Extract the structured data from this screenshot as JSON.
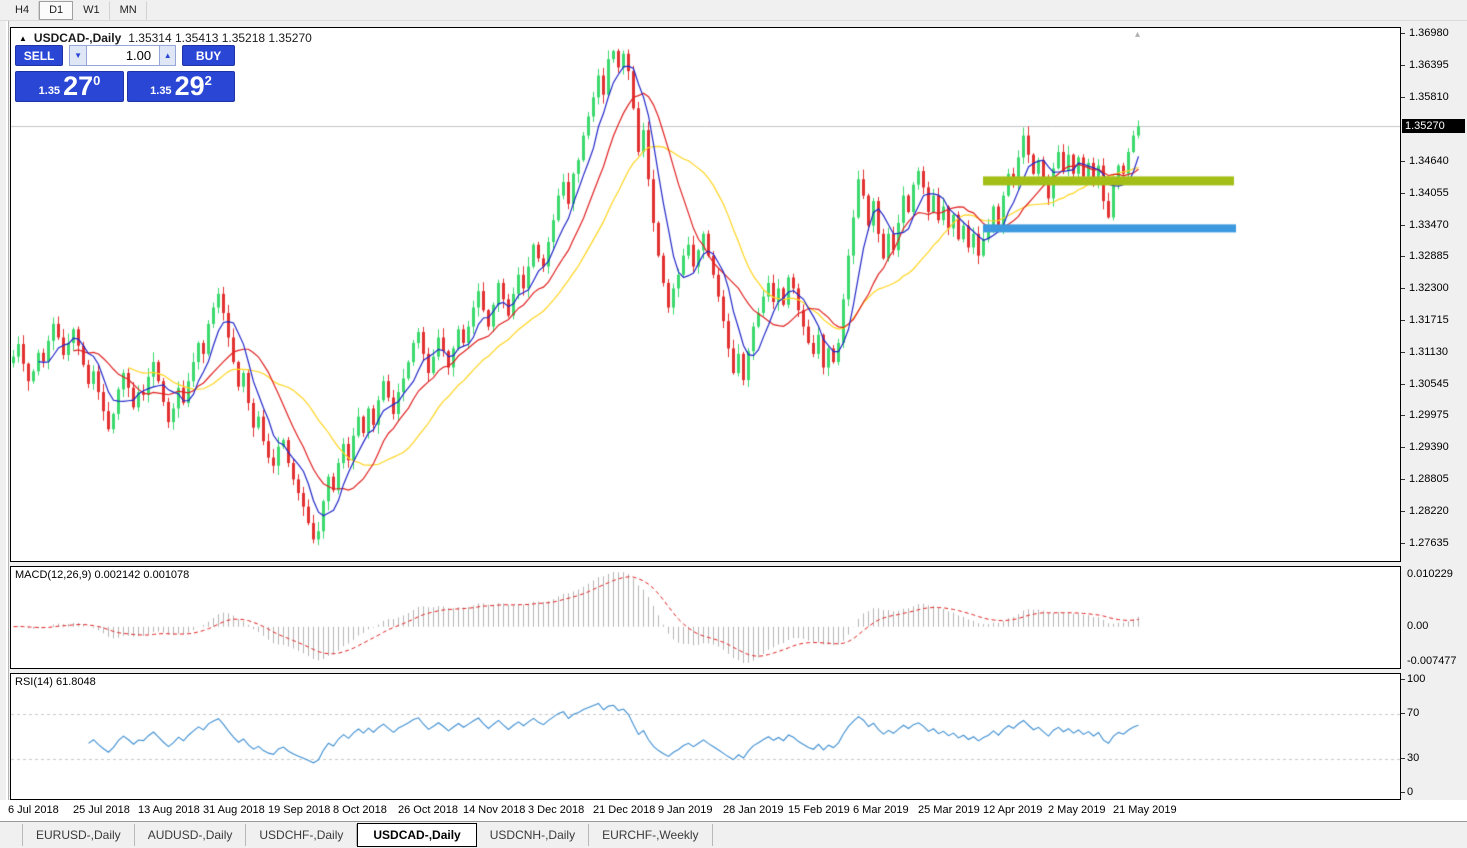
{
  "toolbar": {
    "timeframes": [
      {
        "label": "H4",
        "active": false
      },
      {
        "label": "D1",
        "active": true
      },
      {
        "label": "W1",
        "active": false
      },
      {
        "label": "MN",
        "active": false
      }
    ]
  },
  "chart": {
    "symbol": "USDCAD-,Daily",
    "quote_line": "1.35314 1.35413 1.35218 1.35270",
    "current_price": "1.35270",
    "trade_panel": {
      "sell_label": "SELL",
      "buy_label": "BUY",
      "volume": "1.00",
      "sell_small": "1.35",
      "sell_big": "27",
      "sell_sup": "0",
      "buy_small": "1.35",
      "buy_big": "29",
      "buy_sup": "2"
    }
  },
  "macd_panel": {
    "label": "MACD(12,26,9) 0.002142 0.001078",
    "axis_top": "0.010229",
    "axis_zero": "0.00",
    "axis_bottom": "-0.007477"
  },
  "rsi_panel": {
    "label": "RSI(14) 61.8048",
    "axis": [
      100,
      70,
      30,
      0
    ]
  },
  "date_axis": [
    "6 Jul 2018",
    "25 Jul 2018",
    "13 Aug 2018",
    "31 Aug 2018",
    "19 Sep 2018",
    "8 Oct 2018",
    "26 Oct 2018",
    "14 Nov 2018",
    "3 Dec 2018",
    "21 Dec 2018",
    "9 Jan 2019",
    "28 Jan 2019",
    "15 Feb 2019",
    "6 Mar 2019",
    "25 Mar 2019",
    "12 Apr 2019",
    "2 May 2019",
    "21 May 2019"
  ],
  "tabs": [
    {
      "label": "EURUSD-,Daily",
      "active": false
    },
    {
      "label": "AUDUSD-,Daily",
      "active": false
    },
    {
      "label": "USDCHF-,Daily",
      "active": false
    },
    {
      "label": "USDCAD-,Daily",
      "active": true
    },
    {
      "label": "USDCNH-,Daily",
      "active": false
    },
    {
      "label": "EURCHF-,Weekly",
      "active": false
    }
  ],
  "chart_data": {
    "type": "candlestick",
    "symbol": "USDCAD",
    "timeframe": "Daily",
    "title": "USDCAD-,Daily",
    "ohlc_display": {
      "open": 1.35314,
      "high": 1.35413,
      "low": 1.35218,
      "close": 1.3527
    },
    "current_price": 1.3527,
    "ylim": [
      1.2735,
      1.3707
    ],
    "price_axis_values": [
      1.3698,
      1.36395,
      1.3581,
      1.3464,
      1.34055,
      1.3347,
      1.32885,
      1.323,
      1.31715,
      1.3113,
      1.30545,
      1.29975,
      1.2939,
      1.28805,
      1.2822,
      1.27635
    ],
    "x_axis_dates": [
      "6 Jul 2018",
      "25 Jul 2018",
      "13 Aug 2018",
      "31 Aug 2018",
      "19 Sep 2018",
      "8 Oct 2018",
      "26 Oct 2018",
      "14 Nov 2018",
      "3 Dec 2018",
      "21 Dec 2018",
      "9 Jan 2019",
      "28 Jan 2019",
      "15 Feb 2019",
      "6 Mar 2019",
      "25 Mar 2019",
      "12 Apr 2019",
      "2 May 2019",
      "21 May 2019"
    ],
    "bars_per_label": 13,
    "closes": [
      1.3105,
      1.3128,
      1.3092,
      1.306,
      1.3078,
      1.3112,
      1.3096,
      1.3134,
      1.3165,
      1.314,
      1.3108,
      1.313,
      1.3155,
      1.3125,
      1.309,
      1.3055,
      1.3078,
      1.304,
      1.3005,
      1.2972,
      1.3,
      1.3045,
      1.3075,
      1.3048,
      1.3012,
      1.304,
      1.3035,
      1.3068,
      1.3095,
      1.306,
      1.3022,
      1.2985,
      1.301,
      1.3048,
      1.302,
      1.306,
      1.3095,
      1.313,
      1.311,
      1.3165,
      1.3195,
      1.322,
      1.3185,
      1.314,
      1.3095,
      1.305,
      1.3075,
      1.302,
      1.2975,
      1.2995,
      1.295,
      1.292,
      1.2905,
      1.294,
      1.2952,
      1.291,
      1.288,
      1.2855,
      1.283,
      1.28,
      1.277,
      1.2785,
      1.284,
      1.2885,
      1.286,
      1.291,
      1.2945,
      1.2915,
      1.296,
      1.2995,
      1.2965,
      1.301,
      1.298,
      1.3025,
      1.306,
      1.303,
      1.3,
      1.304,
      1.3065,
      1.3095,
      1.313,
      1.315,
      1.311,
      1.3075,
      1.3105,
      1.314,
      1.3115,
      1.3085,
      1.312,
      1.3155,
      1.313,
      1.316,
      1.3195,
      1.3225,
      1.319,
      1.316,
      1.32,
      1.324,
      1.321,
      1.318,
      1.322,
      1.3255,
      1.323,
      1.327,
      1.331,
      1.3285,
      1.327,
      1.3315,
      1.3355,
      1.34,
      1.3425,
      1.3385,
      1.344,
      1.3465,
      1.351,
      1.3545,
      1.358,
      1.362,
      1.3585,
      1.365,
      1.3665,
      1.3635,
      1.366,
      1.3628,
      1.356,
      1.348,
      1.352,
      1.343,
      1.335,
      1.329,
      1.324,
      1.3195,
      1.323,
      1.3255,
      1.329,
      1.331,
      1.327,
      1.33,
      1.333,
      1.329,
      1.3255,
      1.3215,
      1.317,
      1.312,
      1.3075,
      1.311,
      1.3062,
      1.3115,
      1.316,
      1.3185,
      1.3215,
      1.324,
      1.3205,
      1.323,
      1.32,
      1.325,
      1.323,
      1.319,
      1.316,
      1.313,
      1.311,
      1.3145,
      1.3085,
      1.312,
      1.3095,
      1.313,
      1.321,
      1.329,
      1.336,
      1.343,
      1.34,
      1.3345,
      1.339,
      1.333,
      1.3285,
      1.333,
      1.33,
      1.335,
      1.34,
      1.337,
      1.342,
      1.3445,
      1.3415,
      1.337,
      1.34,
      1.3355,
      1.338,
      1.334,
      1.3365,
      1.332,
      1.3345,
      1.3305,
      1.333,
      1.329,
      1.332,
      1.334,
      1.338,
      1.3345,
      1.34,
      1.344,
      1.342,
      1.347,
      1.351,
      1.3475,
      1.344,
      1.3465,
      1.343,
      1.3395,
      1.345,
      1.348,
      1.3445,
      1.3475,
      1.344,
      1.347,
      1.3435,
      1.346,
      1.3425,
      1.3455,
      1.339,
      1.336,
      1.342,
      1.3455,
      1.344,
      1.348,
      1.351,
      1.3527
    ],
    "moving_averages": [
      {
        "period": 24,
        "color": "#ffd41f"
      },
      {
        "period": 13,
        "color": "#e02222"
      },
      {
        "period": 6,
        "color": "#2228c8"
      }
    ],
    "levels": [
      {
        "price": 1.3427,
        "color": "#a3bf17",
        "thickness": 9,
        "from_bar": 194,
        "to_bar": 244.2
      },
      {
        "price": 1.334,
        "color": "#3c98df",
        "thickness": 8,
        "from_bar": 194,
        "to_bar": 244.6
      }
    ],
    "macd": {
      "fast": 12,
      "slow": 26,
      "signal": 9,
      "value": 0.002142,
      "signal_value": 0.001078,
      "axis_max": 0.010229,
      "axis_min": -0.007477,
      "hist_color": "#b5b5b5",
      "signal_color": "#e02222"
    },
    "rsi": {
      "period": 14,
      "value": 61.8048,
      "levels": [
        70,
        30
      ],
      "color": "#3f8fd2",
      "level_color": "#c8c8c8"
    },
    "candle_colors": {
      "bull": "#3cd96e",
      "bear": "#e23131"
    },
    "price_line_color": "#c4c4c4"
  }
}
